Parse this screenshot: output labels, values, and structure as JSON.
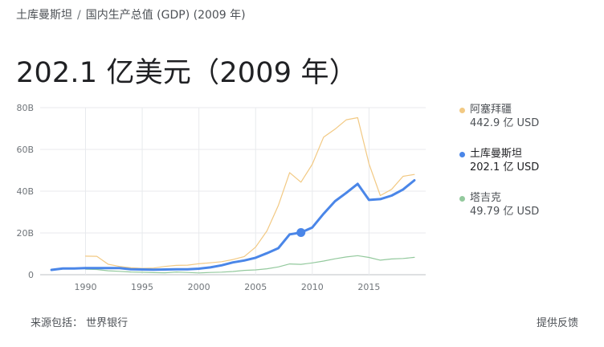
{
  "breadcrumb": {
    "country": "土库曼斯坦",
    "separator": "/",
    "indicator": "国内生产总值 (GDP) (2009 年)"
  },
  "headline": "202.1 亿美元（2009 年）",
  "legend": [
    {
      "name": "阿塞拜疆",
      "value": "442.9 亿 USD",
      "color": "#f2c983"
    },
    {
      "name": "土库曼斯坦",
      "value": "202.1 亿 USD",
      "color": "#4a86e8"
    },
    {
      "name": "塔吉克",
      "value": "49.79 亿 USD",
      "color": "#93c99d"
    }
  ],
  "footer": {
    "source": "来源包括： 世界银行",
    "feedback": "提供反馈"
  },
  "chart_data": {
    "type": "line",
    "x_ticks": [
      1990,
      1995,
      2000,
      2005,
      2010,
      2015
    ],
    "y_ticks": [
      0,
      20,
      40,
      60,
      80
    ],
    "y_tick_labels": [
      "0",
      "20B",
      "40B",
      "60B",
      "80B"
    ],
    "xlim": [
      1986,
      2020
    ],
    "ylim": [
      0,
      80
    ],
    "grid": true,
    "highlight": {
      "series": "土库曼斯坦",
      "x": 2009,
      "y": 20.21
    },
    "series": [
      {
        "name": "阿塞拜疆",
        "color": "#f2c983",
        "x": [
          1990,
          1991,
          1992,
          1993,
          1994,
          1995,
          1996,
          1997,
          1998,
          1999,
          2000,
          2001,
          2002,
          2003,
          2004,
          2005,
          2006,
          2007,
          2008,
          2009,
          2010,
          2011,
          2012,
          2013,
          2014,
          2015,
          2016,
          2017,
          2018,
          2019
        ],
        "values": [
          8.9,
          8.8,
          4.99,
          3.97,
          3.31,
          3.05,
          3.18,
          3.96,
          4.45,
          4.58,
          5.27,
          5.71,
          6.24,
          7.28,
          8.68,
          13.2,
          21.0,
          33.1,
          48.9,
          44.3,
          52.9,
          65.9,
          69.7,
          74.2,
          75.2,
          53.1,
          37.9,
          40.9,
          47.1,
          48.0
        ]
      },
      {
        "name": "土库曼斯坦",
        "color": "#4a86e8",
        "x": [
          1987,
          1988,
          1989,
          1990,
          1991,
          1992,
          1993,
          1994,
          1995,
          1996,
          1997,
          1998,
          1999,
          2000,
          2001,
          2002,
          2003,
          2004,
          2005,
          2006,
          2007,
          2008,
          2009,
          2010,
          2011,
          2012,
          2013,
          2014,
          2015,
          2016,
          2017,
          2018,
          2019
        ],
        "values": [
          2.3,
          3.0,
          3.0,
          3.2,
          3.2,
          3.2,
          3.2,
          2.6,
          2.5,
          2.4,
          2.5,
          2.6,
          2.6,
          2.9,
          3.5,
          4.5,
          5.9,
          6.8,
          8.1,
          10.3,
          12.7,
          19.3,
          20.21,
          22.6,
          29.2,
          35.2,
          39.2,
          43.5,
          35.8,
          36.2,
          37.9,
          40.8,
          45.2
        ]
      },
      {
        "name": "塔吉克",
        "color": "#93c99d",
        "x": [
          1990,
          1991,
          1992,
          1993,
          1994,
          1995,
          1996,
          1997,
          1998,
          1999,
          2000,
          2001,
          2002,
          2003,
          2004,
          2005,
          2006,
          2007,
          2008,
          2009,
          2010,
          2011,
          2012,
          2013,
          2014,
          2015,
          2016,
          2017,
          2018,
          2019
        ],
        "values": [
          2.6,
          2.5,
          1.9,
          1.6,
          1.3,
          1.2,
          1.0,
          0.92,
          1.32,
          1.09,
          0.86,
          1.08,
          1.22,
          1.55,
          2.08,
          2.31,
          2.83,
          3.72,
          5.16,
          4.98,
          5.64,
          6.52,
          7.63,
          8.51,
          9.11,
          8.27,
          6.95,
          7.54,
          7.77,
          8.3
        ]
      }
    ]
  }
}
